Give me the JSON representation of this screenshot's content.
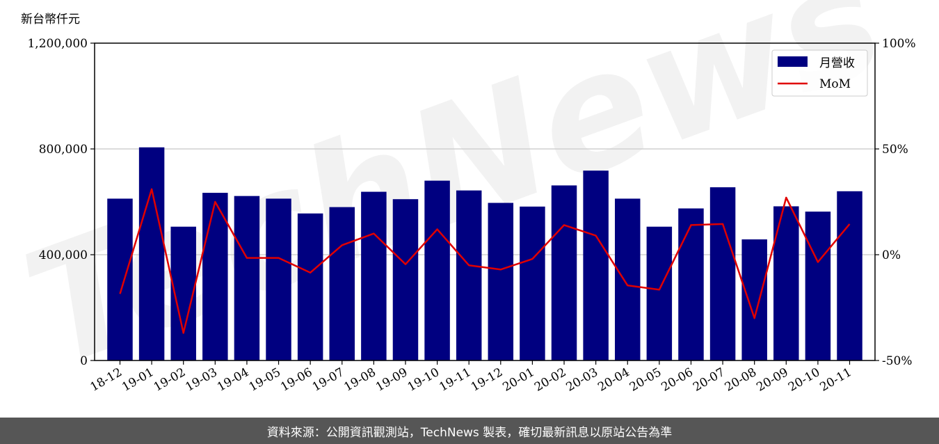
{
  "chart_data": {
    "type": "bar",
    "y_unit_label": "新台幣仟元",
    "categories": [
      "18-12",
      "19-01",
      "19-02",
      "19-03",
      "19-04",
      "19-05",
      "19-06",
      "19-07",
      "19-08",
      "19-09",
      "19-10",
      "19-11",
      "19-12",
      "20-01",
      "20-02",
      "20-03",
      "20-04",
      "20-05",
      "20-06",
      "20-07",
      "20-08",
      "20-09",
      "20-10",
      "20-11"
    ],
    "series": [
      {
        "name": "月營收",
        "axis": "left",
        "color": "#000080",
        "values": [
          612000,
          806000,
          506000,
          634000,
          622000,
          612000,
          556000,
          580000,
          638000,
          610000,
          680000,
          643000,
          596000,
          582000,
          662000,
          718000,
          612000,
          506000,
          575000,
          655000,
          458000,
          583000,
          563000,
          640000
        ]
      },
      {
        "name": "MoM",
        "axis": "right",
        "color": "#e00000",
        "values": [
          -18.5,
          31,
          -37,
          25,
          -1.5,
          -1.5,
          -8.5,
          4.5,
          10,
          -4.5,
          12,
          -5,
          -7,
          -2,
          14,
          9,
          -14.5,
          -16.5,
          14,
          14.5,
          -30,
          27,
          -3.5,
          14.5
        ]
      }
    ],
    "y_left": {
      "lim": [
        0,
        1200000
      ],
      "ticks": [
        0,
        400000,
        800000,
        1200000
      ],
      "tick_labels": [
        "0",
        "400,000",
        "800,000",
        "1,200,000"
      ]
    },
    "y_right": {
      "lim": [
        -50,
        100
      ],
      "ticks": [
        -50,
        0,
        50,
        100
      ],
      "tick_labels": [
        "-50%",
        "0%",
        "50%",
        "100%"
      ]
    },
    "grid": "horizontal",
    "legend": "top-right"
  },
  "watermark": "TechNews",
  "footer": {
    "text": "資料來源：公開資訊觀測站，TechNews 製表，確切最新訊息以原站公告為準"
  }
}
